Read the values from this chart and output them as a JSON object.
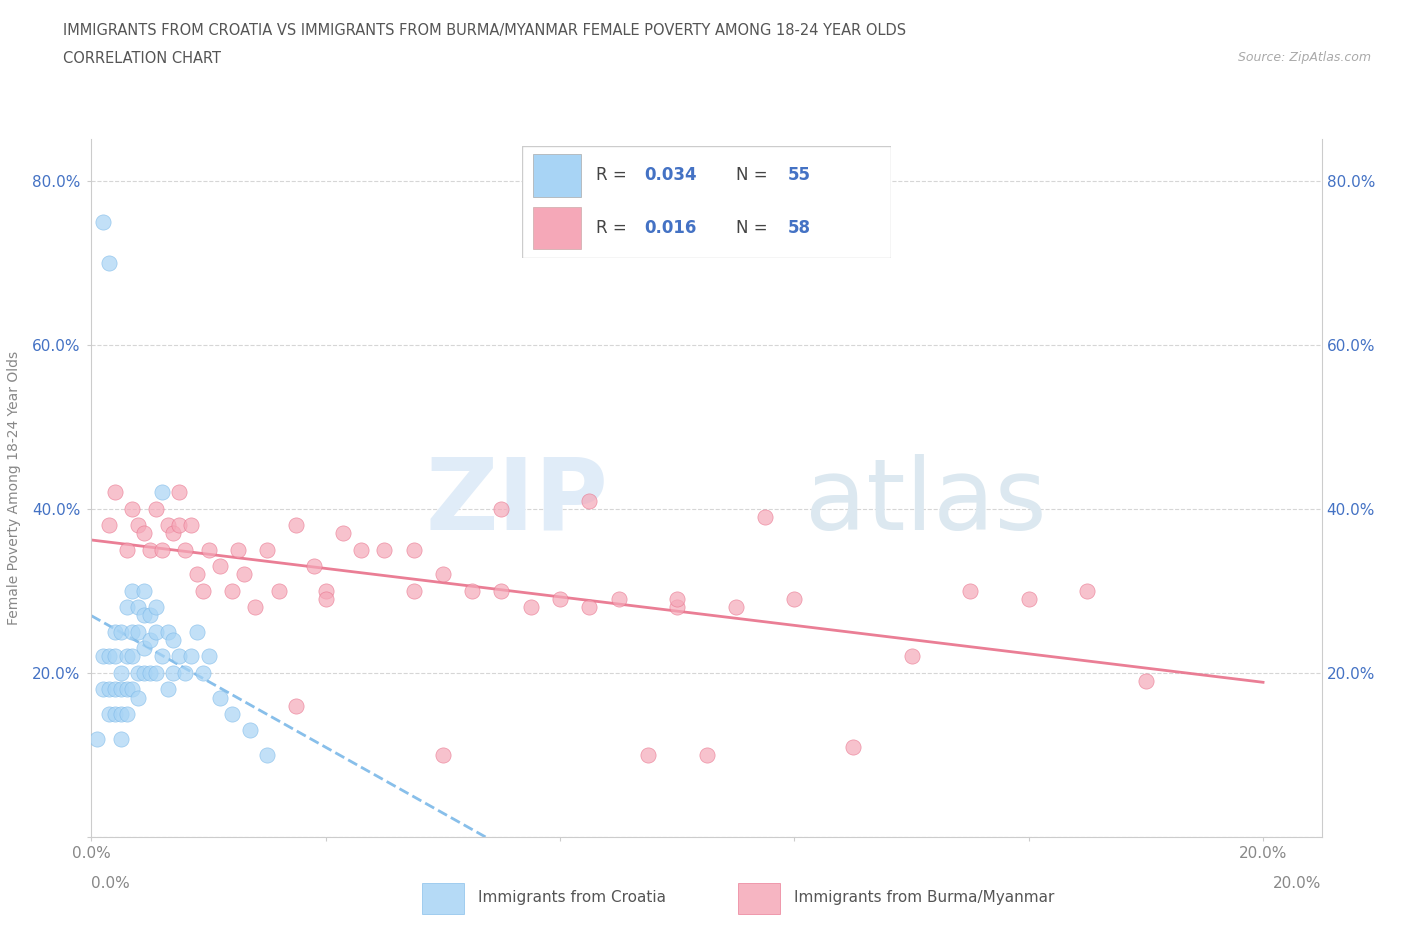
{
  "title_line1": "IMMIGRANTS FROM CROATIA VS IMMIGRANTS FROM BURMA/MYANMAR FEMALE POVERTY AMONG 18-24 YEAR OLDS",
  "title_line2": "CORRELATION CHART",
  "source_text": "Source: ZipAtlas.com",
  "ylabel": "Female Poverty Among 18-24 Year Olds",
  "xlim": [
    0.0,
    0.21
  ],
  "ylim": [
    0.0,
    0.85
  ],
  "xtick_positions": [
    0.0,
    0.04,
    0.08,
    0.12,
    0.16,
    0.2
  ],
  "xticklabels": [
    "0.0%",
    "",
    "",
    "",
    "",
    "20.0%"
  ],
  "ytick_positions": [
    0.0,
    0.2,
    0.4,
    0.6,
    0.8
  ],
  "yticklabels": [
    "",
    "20.0%",
    "40.0%",
    "60.0%",
    "80.0%"
  ],
  "legend_r1": "0.034",
  "legend_n1": "55",
  "legend_r2": "0.016",
  "legend_n2": "58",
  "color_croatia": "#a8d4f5",
  "color_burma": "#f5a8b8",
  "trendline_color_croatia": "#7bb8e8",
  "trendline_color_burma": "#e8708a",
  "croatia_x": [
    0.002,
    0.003,
    0.001,
    0.002,
    0.002,
    0.003,
    0.003,
    0.003,
    0.004,
    0.004,
    0.004,
    0.004,
    0.005,
    0.005,
    0.005,
    0.005,
    0.005,
    0.006,
    0.006,
    0.006,
    0.006,
    0.007,
    0.007,
    0.007,
    0.007,
    0.008,
    0.008,
    0.008,
    0.008,
    0.009,
    0.009,
    0.009,
    0.009,
    0.01,
    0.01,
    0.01,
    0.011,
    0.011,
    0.011,
    0.012,
    0.012,
    0.013,
    0.013,
    0.014,
    0.014,
    0.015,
    0.016,
    0.017,
    0.018,
    0.019,
    0.02,
    0.022,
    0.024,
    0.027,
    0.03
  ],
  "croatia_y": [
    0.75,
    0.7,
    0.12,
    0.18,
    0.22,
    0.15,
    0.18,
    0.22,
    0.25,
    0.18,
    0.15,
    0.22,
    0.25,
    0.2,
    0.15,
    0.18,
    0.12,
    0.28,
    0.22,
    0.18,
    0.15,
    0.3,
    0.25,
    0.22,
    0.18,
    0.28,
    0.25,
    0.2,
    0.17,
    0.3,
    0.27,
    0.23,
    0.2,
    0.27,
    0.24,
    0.2,
    0.28,
    0.25,
    0.2,
    0.42,
    0.22,
    0.25,
    0.18,
    0.24,
    0.2,
    0.22,
    0.2,
    0.22,
    0.25,
    0.2,
    0.22,
    0.17,
    0.15,
    0.13,
    0.1
  ],
  "burma_x": [
    0.003,
    0.004,
    0.006,
    0.007,
    0.008,
    0.009,
    0.01,
    0.011,
    0.012,
    0.013,
    0.014,
    0.015,
    0.015,
    0.016,
    0.017,
    0.018,
    0.019,
    0.02,
    0.022,
    0.024,
    0.026,
    0.028,
    0.03,
    0.032,
    0.035,
    0.038,
    0.04,
    0.043,
    0.046,
    0.05,
    0.055,
    0.06,
    0.065,
    0.07,
    0.075,
    0.08,
    0.085,
    0.09,
    0.095,
    0.1,
    0.105,
    0.11,
    0.115,
    0.12,
    0.13,
    0.14,
    0.15,
    0.16,
    0.17,
    0.18,
    0.06,
    0.035,
    0.025,
    0.04,
    0.055,
    0.07,
    0.085,
    0.1
  ],
  "burma_y": [
    0.38,
    0.42,
    0.35,
    0.4,
    0.38,
    0.37,
    0.35,
    0.4,
    0.35,
    0.38,
    0.37,
    0.42,
    0.38,
    0.35,
    0.38,
    0.32,
    0.3,
    0.35,
    0.33,
    0.3,
    0.32,
    0.28,
    0.35,
    0.3,
    0.38,
    0.33,
    0.3,
    0.37,
    0.35,
    0.35,
    0.3,
    0.32,
    0.3,
    0.3,
    0.28,
    0.29,
    0.28,
    0.29,
    0.1,
    0.28,
    0.1,
    0.28,
    0.39,
    0.29,
    0.11,
    0.22,
    0.3,
    0.29,
    0.3,
    0.19,
    0.1,
    0.16,
    0.35,
    0.29,
    0.35,
    0.4,
    0.41,
    0.29
  ]
}
